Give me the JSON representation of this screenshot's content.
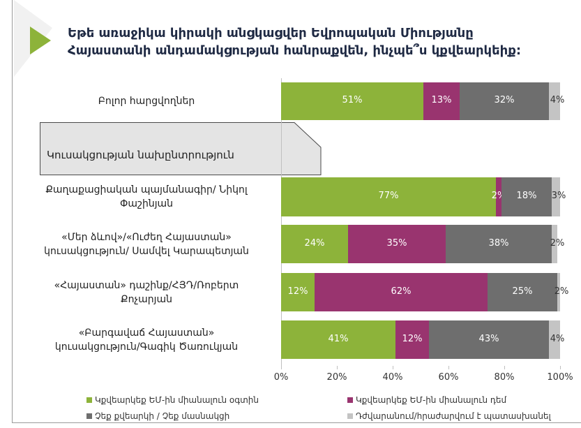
{
  "title_lines": [
    "Եթե առաջիկա կիրակի անցկացվեր Եվրոպական Միությանը",
    "Հայաստանի անդամակցության հանրաքվեն, ինչպե՞ս կքվեարկեիք:"
  ],
  "section_label": "Կուսակցության նախընտրություն",
  "chart_data": {
    "type": "bar",
    "orientation": "horizontal",
    "stacked": true,
    "title": "Եթե առաջիկա կիրակի անցկացվեր Եվրոպական Միությանը Հայաստանի անդամակցության հանրաքվեն, ինչպե՞ս կքվեարկեիք:",
    "categories": [
      [
        "Բոլոր հարցվողներ"
      ],
      [
        "Քաղաքացիական պայմանագիր/ Նիկոլ",
        "Փաշինյան"
      ],
      [
        "«Մեր ձևով»/«Ուժեղ Հայաստան»",
        "կուսակցություն/ Սամվել Կարապետյան"
      ],
      [
        "«Հայաստան» դաշինք/ՀՅԴ/Ռոբերտ",
        "Քոչարյան"
      ],
      [
        "«Բարգավաճ Հայաստան»",
        "կուսակցություն/Գագիկ Ծառուկյան"
      ]
    ],
    "series": [
      {
        "name": "Կքվեարկեք ԵՄ-ին միանալուն օգտին",
        "color": "#8db33a",
        "values": [
          51,
          77,
          24,
          12,
          41
        ]
      },
      {
        "name": "Կքվեարկեք ԵՄ-ին միանալուն դեմ",
        "color": "#99346f",
        "values": [
          13,
          2,
          35,
          62,
          12
        ]
      },
      {
        "name": "Չեք քվեարկի / Չեք մասնակցի",
        "color": "#6e6e6e",
        "values": [
          32,
          18,
          38,
          25,
          43
        ]
      },
      {
        "name": "Դժվարանում/հրաժարվում է պատասխանել",
        "color": "#c4c4c4",
        "values": [
          4,
          3,
          2,
          2,
          4
        ]
      }
    ],
    "value_suffix": "%",
    "xlim": [
      0,
      100
    ],
    "xticks": [
      "0%",
      "20%",
      "40%",
      "60%",
      "80%",
      "100%"
    ],
    "legend": "bottom"
  }
}
